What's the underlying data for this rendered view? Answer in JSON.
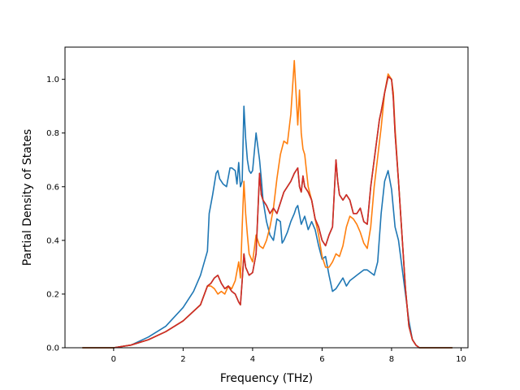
{
  "chart_data": {
    "type": "line",
    "title": "",
    "xlabel": "Frequency (THz)",
    "ylabel": "Partial Density of States",
    "xlim": [
      -1.4,
      10.2
    ],
    "ylim": [
      0.0,
      1.12
    ],
    "xticks": [
      0,
      2,
      4,
      6,
      8,
      10
    ],
    "yticks": [
      0.0,
      0.2,
      0.4,
      0.6,
      0.8,
      1.0
    ],
    "grid": false,
    "legend": "none",
    "colors": [
      "#1f77b4",
      "#ff7f0e",
      "#2ca02c",
      "#d62728"
    ],
    "series": [
      {
        "color": "#1f77b4",
        "x": [
          -0.9,
          0,
          0.5,
          1,
          1.5,
          2,
          2.3,
          2.5,
          2.7,
          2.75,
          2.85,
          2.95,
          3.0,
          3.05,
          3.15,
          3.25,
          3.35,
          3.4,
          3.5,
          3.55,
          3.6,
          3.65,
          3.7,
          3.75,
          3.8,
          3.85,
          3.9,
          3.95,
          4.0,
          4.1,
          4.2,
          4.25,
          4.3,
          4.4,
          4.5,
          4.6,
          4.7,
          4.8,
          4.85,
          4.9,
          5.0,
          5.1,
          5.2,
          5.25,
          5.3,
          5.4,
          5.5,
          5.6,
          5.7,
          5.8,
          5.9,
          6.0,
          6.1,
          6.2,
          6.3,
          6.4,
          6.5,
          6.6,
          6.7,
          6.8,
          6.9,
          7.0,
          7.1,
          7.2,
          7.3,
          7.4,
          7.5,
          7.6,
          7.7,
          7.8,
          7.9,
          8.0,
          8.1,
          8.2,
          8.3,
          8.4,
          8.5,
          8.6,
          8.7,
          8.8,
          8.9,
          9.2,
          9.75
        ],
        "y": [
          0,
          0,
          0.01,
          0.04,
          0.08,
          0.15,
          0.21,
          0.27,
          0.36,
          0.5,
          0.57,
          0.65,
          0.66,
          0.63,
          0.61,
          0.6,
          0.67,
          0.67,
          0.66,
          0.61,
          0.69,
          0.6,
          0.62,
          0.9,
          0.78,
          0.7,
          0.66,
          0.65,
          0.66,
          0.8,
          0.7,
          0.63,
          0.55,
          0.47,
          0.42,
          0.4,
          0.48,
          0.47,
          0.39,
          0.4,
          0.43,
          0.47,
          0.5,
          0.52,
          0.53,
          0.46,
          0.49,
          0.44,
          0.47,
          0.44,
          0.38,
          0.33,
          0.34,
          0.27,
          0.21,
          0.22,
          0.24,
          0.26,
          0.23,
          0.25,
          0.26,
          0.27,
          0.28,
          0.29,
          0.29,
          0.28,
          0.27,
          0.32,
          0.5,
          0.62,
          0.66,
          0.59,
          0.45,
          0.4,
          0.3,
          0.2,
          0.1,
          0.03,
          0.01,
          0,
          0,
          0,
          0
        ]
      },
      {
        "color": "#ff7f0e",
        "x": [
          -0.9,
          0,
          0.5,
          1,
          1.5,
          2,
          2.5,
          2.7,
          2.8,
          2.9,
          3.0,
          3.1,
          3.2,
          3.3,
          3.4,
          3.5,
          3.6,
          3.65,
          3.7,
          3.75,
          3.8,
          3.85,
          3.9,
          4.0,
          4.1,
          4.2,
          4.3,
          4.4,
          4.5,
          4.6,
          4.7,
          4.8,
          4.9,
          5.0,
          5.1,
          5.2,
          5.25,
          5.3,
          5.35,
          5.4,
          5.45,
          5.5,
          5.6,
          5.7,
          5.8,
          5.9,
          6.0,
          6.1,
          6.2,
          6.3,
          6.4,
          6.5,
          6.6,
          6.7,
          6.8,
          6.9,
          7.0,
          7.1,
          7.2,
          7.3,
          7.4,
          7.5,
          7.6,
          7.7,
          7.8,
          7.9,
          8.0,
          8.05,
          8.1,
          8.2,
          8.3,
          8.4,
          8.5,
          8.6,
          8.7,
          8.8,
          8.9,
          9.2,
          9.75
        ],
        "y": [
          0,
          0,
          0.01,
          0.03,
          0.06,
          0.1,
          0.16,
          0.23,
          0.23,
          0.22,
          0.2,
          0.21,
          0.2,
          0.23,
          0.22,
          0.25,
          0.32,
          0.26,
          0.45,
          0.62,
          0.5,
          0.42,
          0.35,
          0.32,
          0.42,
          0.38,
          0.37,
          0.4,
          0.45,
          0.52,
          0.63,
          0.72,
          0.77,
          0.76,
          0.87,
          1.07,
          0.95,
          0.83,
          0.96,
          0.8,
          0.74,
          0.72,
          0.6,
          0.55,
          0.48,
          0.42,
          0.34,
          0.3,
          0.3,
          0.32,
          0.35,
          0.34,
          0.38,
          0.45,
          0.49,
          0.48,
          0.46,
          0.43,
          0.39,
          0.37,
          0.45,
          0.6,
          0.71,
          0.82,
          0.95,
          1.02,
          1.0,
          0.95,
          0.82,
          0.62,
          0.42,
          0.22,
          0.08,
          0.03,
          0.01,
          0,
          0,
          0,
          0
        ]
      },
      {
        "color": "#2ca02c",
        "x": [
          -0.9,
          0,
          0.5,
          1,
          1.5,
          2,
          2.5,
          2.7,
          2.8,
          2.9,
          3.0,
          3.1,
          3.2,
          3.3,
          3.4,
          3.5,
          3.6,
          3.65,
          3.7,
          3.75,
          3.8,
          3.9,
          4.0,
          4.1,
          4.2,
          4.25,
          4.3,
          4.4,
          4.5,
          4.6,
          4.7,
          4.8,
          4.9,
          5.0,
          5.1,
          5.2,
          5.3,
          5.35,
          5.4,
          5.45,
          5.5,
          5.6,
          5.7,
          5.8,
          5.9,
          6.0,
          6.1,
          6.2,
          6.3,
          6.4,
          6.45,
          6.5,
          6.6,
          6.7,
          6.8,
          6.9,
          7.0,
          7.1,
          7.2,
          7.3,
          7.4,
          7.5,
          7.6,
          7.65,
          7.7,
          7.8,
          7.9,
          8.0,
          8.05,
          8.1,
          8.2,
          8.3,
          8.4,
          8.5,
          8.6,
          8.7,
          8.8,
          8.9,
          9.2,
          9.75
        ],
        "y": [
          0,
          0,
          0.01,
          0.03,
          0.06,
          0.1,
          0.16,
          0.23,
          0.24,
          0.26,
          0.27,
          0.24,
          0.22,
          0.23,
          0.21,
          0.2,
          0.17,
          0.16,
          0.25,
          0.35,
          0.3,
          0.27,
          0.28,
          0.35,
          0.65,
          0.57,
          0.55,
          0.53,
          0.5,
          0.52,
          0.5,
          0.54,
          0.58,
          0.6,
          0.62,
          0.65,
          0.67,
          0.6,
          0.58,
          0.64,
          0.6,
          0.58,
          0.55,
          0.48,
          0.45,
          0.4,
          0.38,
          0.42,
          0.45,
          0.7,
          0.62,
          0.57,
          0.55,
          0.57,
          0.55,
          0.5,
          0.5,
          0.52,
          0.47,
          0.46,
          0.6,
          0.7,
          0.8,
          0.85,
          0.88,
          0.95,
          1.01,
          1.0,
          0.93,
          0.8,
          0.62,
          0.42,
          0.22,
          0.08,
          0.03,
          0.01,
          0,
          0,
          0,
          0
        ]
      },
      {
        "color": "#d62728",
        "x": [
          -0.9,
          0,
          0.5,
          1,
          1.5,
          2,
          2.5,
          2.7,
          2.8,
          2.9,
          3.0,
          3.1,
          3.2,
          3.3,
          3.4,
          3.5,
          3.6,
          3.65,
          3.7,
          3.75,
          3.8,
          3.9,
          4.0,
          4.1,
          4.2,
          4.25,
          4.3,
          4.4,
          4.5,
          4.6,
          4.7,
          4.8,
          4.9,
          5.0,
          5.1,
          5.2,
          5.3,
          5.35,
          5.4,
          5.45,
          5.5,
          5.6,
          5.7,
          5.8,
          5.9,
          6.0,
          6.1,
          6.2,
          6.3,
          6.4,
          6.45,
          6.5,
          6.6,
          6.7,
          6.8,
          6.9,
          7.0,
          7.1,
          7.2,
          7.3,
          7.4,
          7.5,
          7.6,
          7.65,
          7.7,
          7.8,
          7.9,
          8.0,
          8.05,
          8.1,
          8.2,
          8.3,
          8.4,
          8.5,
          8.6,
          8.7,
          8.8,
          8.9,
          9.2,
          9.75
        ],
        "y": [
          0,
          0,
          0.01,
          0.03,
          0.06,
          0.1,
          0.16,
          0.23,
          0.24,
          0.26,
          0.27,
          0.24,
          0.22,
          0.23,
          0.21,
          0.2,
          0.17,
          0.16,
          0.25,
          0.35,
          0.3,
          0.27,
          0.28,
          0.35,
          0.65,
          0.57,
          0.55,
          0.53,
          0.5,
          0.52,
          0.5,
          0.54,
          0.58,
          0.6,
          0.62,
          0.65,
          0.67,
          0.6,
          0.58,
          0.64,
          0.6,
          0.58,
          0.55,
          0.48,
          0.45,
          0.4,
          0.38,
          0.42,
          0.45,
          0.7,
          0.62,
          0.57,
          0.55,
          0.57,
          0.55,
          0.5,
          0.5,
          0.52,
          0.47,
          0.46,
          0.6,
          0.7,
          0.8,
          0.85,
          0.88,
          0.95,
          1.01,
          1.0,
          0.93,
          0.8,
          0.62,
          0.42,
          0.22,
          0.08,
          0.03,
          0.01,
          0,
          0,
          0,
          0
        ]
      }
    ]
  }
}
